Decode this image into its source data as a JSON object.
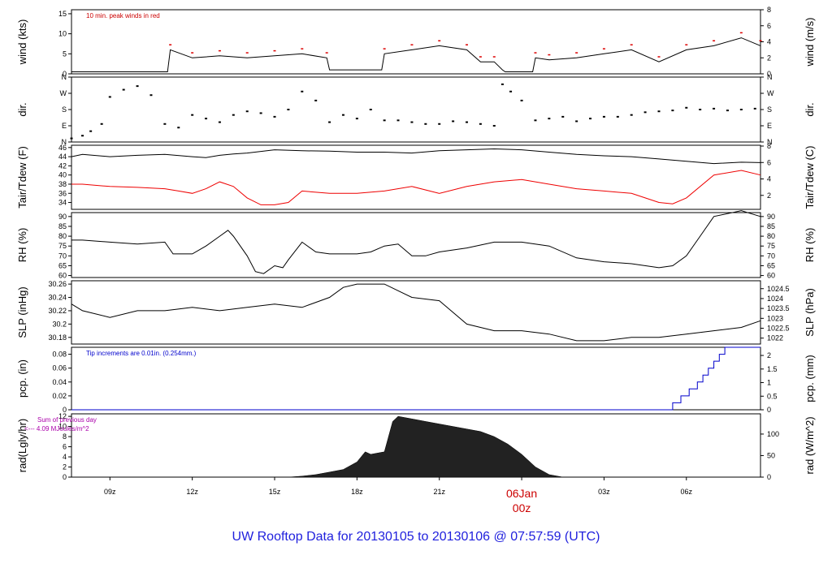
{
  "title": "UW Rooftop Data for 20130105  to  20130106 @ 07:57:59  (UTC)",
  "x_ticks": [
    "09z",
    "12z",
    "15z",
    "18z",
    "21z",
    "06Jan",
    "00z",
    "03z",
    "06z"
  ],
  "chart_data": [
    {
      "type": "line",
      "ylabel": "wind (kts)",
      "ylabel_right": "wind (m/s)",
      "yticks": [
        0,
        5,
        10,
        15
      ],
      "yticks_right": [
        0,
        2,
        4,
        6,
        8
      ],
      "annotation": "10 min. peak winds in red",
      "colors": {
        "line": "#000000",
        "peaks": "#dd0000",
        "annotation": "#cc0000"
      },
      "x_hours": [
        7.6,
        11.1,
        11.2,
        12,
        13,
        14,
        15,
        16,
        16.9,
        17,
        18,
        18.9,
        19,
        20,
        21,
        22,
        22.5,
        23,
        23.3,
        23.4,
        24,
        24.4,
        24.5,
        25,
        26,
        27,
        28,
        29,
        30,
        31,
        32,
        32.7
      ],
      "values": [
        0.5,
        0.5,
        6,
        4,
        4.5,
        4,
        4.5,
        5,
        4,
        1,
        1,
        1,
        5,
        6,
        7,
        6,
        3,
        3,
        1,
        0.5,
        0.5,
        0.5,
        4,
        3.5,
        4,
        5,
        6,
        3,
        6,
        7,
        9,
        7
      ]
    },
    {
      "type": "scatter",
      "ylabel": "dir.",
      "ylabel_right": "dir.",
      "yticks": [
        "N",
        "E",
        "S",
        "W",
        "N"
      ],
      "yticks_right": [
        "N",
        "E",
        "S",
        "W",
        "N"
      ],
      "x_hours": [
        7.6,
        8,
        8.3,
        8.7,
        9,
        9.5,
        10,
        10.5,
        11,
        11.5,
        12,
        12.5,
        13,
        13.5,
        14,
        14.5,
        15,
        15.5,
        16,
        16.5,
        17,
        17.5,
        18,
        18.5,
        19,
        19.5,
        20,
        20.5,
        21,
        21.5,
        22,
        22.5,
        23,
        23.3,
        23.6,
        24,
        24.5,
        25,
        25.5,
        26,
        26.5,
        27,
        27.5,
        28,
        28.5,
        29,
        29.5,
        30,
        30.5,
        31,
        31.5,
        32,
        32.5
      ],
      "values": [
        20,
        35,
        60,
        100,
        250,
        290,
        310,
        260,
        100,
        80,
        150,
        130,
        110,
        150,
        170,
        160,
        140,
        180,
        280,
        230,
        110,
        150,
        130,
        180,
        120,
        120,
        110,
        100,
        100,
        115,
        110,
        100,
        90,
        320,
        280,
        230,
        120,
        130,
        140,
        115,
        130,
        140,
        140,
        150,
        165,
        170,
        175,
        190,
        180,
        185,
        175,
        180,
        185
      ]
    },
    {
      "type": "line",
      "ylabel": "Tair/Tdew (F)",
      "ylabel_right": "Tair/Tdew (C)",
      "yticks": [
        34,
        36,
        38,
        40,
        42,
        44,
        46
      ],
      "yticks_right": [
        2,
        4,
        6,
        8
      ],
      "series": [
        {
          "color": "#000000",
          "x_hours": [
            7.6,
            8,
            9,
            10,
            11,
            12,
            12.5,
            13,
            13.5,
            14,
            15,
            16,
            17,
            18,
            19,
            20,
            21,
            22,
            23,
            24,
            25,
            26,
            27,
            28,
            29,
            30,
            31,
            32,
            32.7
          ],
          "values": [
            44,
            44.5,
            44,
            44.3,
            44.5,
            44,
            43.8,
            44.3,
            44.6,
            44.8,
            45.5,
            45.3,
            45.2,
            45,
            45,
            44.8,
            45.3,
            45.5,
            45.7,
            45.5,
            45,
            44.5,
            44.2,
            44,
            43.5,
            43,
            42.5,
            42.8,
            42.7
          ]
        },
        {
          "color": "#ee0000",
          "x_hours": [
            7.6,
            8,
            9,
            10,
            11,
            11.5,
            12,
            12.5,
            13,
            13.5,
            14,
            14.5,
            15,
            15.5,
            16,
            17,
            18,
            19,
            20,
            21,
            22,
            23,
            24,
            25,
            26,
            27,
            28,
            28.5,
            29,
            29.5,
            30,
            31,
            32,
            32.7
          ],
          "values": [
            38,
            38,
            37.5,
            37.3,
            37,
            36.5,
            36,
            37,
            38.5,
            37.5,
            35,
            33.5,
            33.5,
            34,
            36.5,
            36,
            36,
            36.5,
            37.5,
            36,
            37.5,
            38.5,
            39,
            38,
            37,
            36.5,
            36,
            35,
            34,
            33.7,
            35,
            40,
            41,
            40
          ]
        }
      ]
    },
    {
      "type": "line",
      "ylabel": "RH (%)",
      "ylabel_right": "RH (%)",
      "yticks": [
        60,
        65,
        70,
        75,
        80,
        85,
        90
      ],
      "yticks_right": [
        60,
        65,
        70,
        75,
        80,
        85,
        90
      ],
      "x_hours": [
        7.6,
        8,
        9,
        10,
        11,
        11.3,
        12,
        12.5,
        13,
        13.3,
        13.5,
        14,
        14.3,
        14.6,
        15,
        15.3,
        15.5,
        16,
        16.5,
        17,
        18,
        18.5,
        19,
        19.5,
        20,
        20.5,
        21,
        22,
        23,
        24,
        25,
        26,
        27,
        28,
        29,
        29.5,
        30,
        30.5,
        31,
        32,
        32.7
      ],
      "values": [
        78,
        78,
        77,
        76,
        77,
        71,
        71,
        75,
        80,
        83,
        80,
        70,
        62,
        61,
        65,
        64,
        68,
        77,
        72,
        71,
        71,
        72,
        75,
        76,
        70,
        70,
        72,
        74,
        77,
        77,
        75,
        69,
        67,
        66,
        64,
        65,
        70,
        80,
        90,
        93,
        90
      ]
    },
    {
      "type": "line",
      "ylabel": "SLP (inHg)",
      "ylabel_right": "SLP (hPa)",
      "yticks": [
        30.18,
        30.2,
        30.22,
        30.24,
        30.26
      ],
      "yticks_right": [
        1022,
        1022.5,
        1023,
        1023.5,
        1024,
        1024.5
      ],
      "x_hours": [
        7.6,
        8,
        9,
        10,
        11,
        12,
        13,
        14,
        15,
        16,
        17,
        17.5,
        18,
        18.5,
        19,
        19.5,
        20,
        21,
        22,
        23,
        24,
        25,
        26,
        27,
        28,
        29,
        30,
        31,
        32,
        32.7
      ],
      "values": [
        30.23,
        30.22,
        30.21,
        30.22,
        30.22,
        30.225,
        30.22,
        30.225,
        30.23,
        30.225,
        30.24,
        30.255,
        30.26,
        30.26,
        30.26,
        30.25,
        30.24,
        30.235,
        30.2,
        30.19,
        30.19,
        30.185,
        30.175,
        30.175,
        30.18,
        30.18,
        30.185,
        30.19,
        30.195,
        30.205
      ]
    },
    {
      "type": "line",
      "ylabel": "pcp. (in)",
      "ylabel_right": "pcp. (mm)",
      "yticks": [
        0.0,
        0.02,
        0.04,
        0.06,
        0.08
      ],
      "yticks_right": [
        0,
        0.5,
        1,
        1.5,
        2
      ],
      "annotation": "Tip increments are 0.01in. (0.254mm.)",
      "colors": {
        "line": "#0000cc",
        "annotation": "#0000cc"
      },
      "x_hours": [
        7.6,
        29.5,
        29.5,
        29.8,
        29.8,
        30.1,
        30.1,
        30.4,
        30.4,
        30.6,
        30.6,
        30.8,
        30.8,
        31,
        31,
        31.2,
        31.2,
        31.4,
        31.4,
        32.7
      ],
      "values": [
        0,
        0,
        0.01,
        0.01,
        0.02,
        0.02,
        0.03,
        0.03,
        0.04,
        0.04,
        0.05,
        0.05,
        0.06,
        0.06,
        0.07,
        0.07,
        0.08,
        0.08,
        0.09,
        0.09
      ]
    },
    {
      "type": "area",
      "ylabel": "rad(Lgly/hr)",
      "ylabel_right": "rad (W/m^2)",
      "yticks": [
        0,
        2,
        4,
        6,
        8,
        10,
        12
      ],
      "yticks_right": [
        0,
        50,
        100
      ],
      "annotation": "Sum of previous day <--- 4.09 MJoules/m^2",
      "colors": {
        "fill": "#222222",
        "annotation": "#aa00aa"
      },
      "x_hours": [
        7.6,
        15.5,
        16,
        16.5,
        17,
        17.5,
        18,
        18.3,
        18.5,
        19,
        19.3,
        19.5,
        20,
        20.5,
        21,
        21.5,
        22,
        22.5,
        23,
        23.5,
        24,
        24.5,
        25,
        25.5,
        32.7
      ],
      "values": [
        0,
        0,
        0.2,
        0.5,
        1,
        1.5,
        3,
        5,
        4.5,
        5,
        11,
        12,
        11.5,
        11,
        10.5,
        10,
        9.5,
        9,
        8,
        6.5,
        4.5,
        2,
        0.5,
        0,
        0
      ]
    }
  ]
}
